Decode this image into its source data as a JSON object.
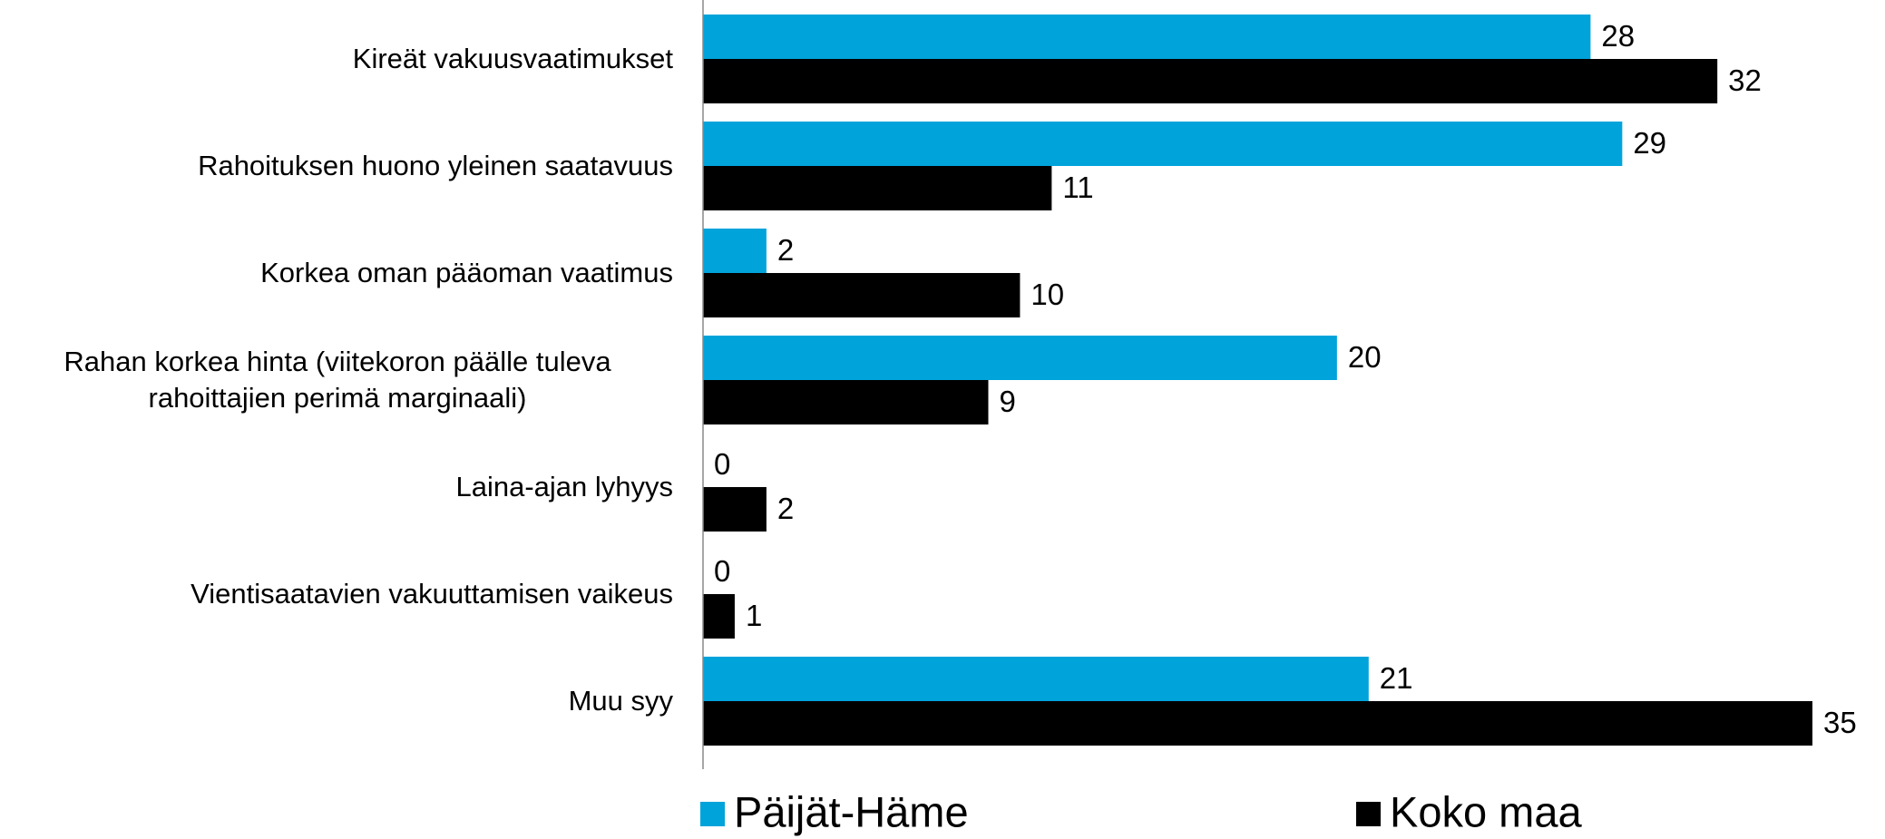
{
  "chart_data": {
    "type": "barh",
    "categories": [
      "Kireät vakuusvaatimukset",
      "Rahoituksen huono yleinen saatavuus",
      "Korkea oman pääoman vaatimus",
      "Rahan korkea hinta (viitekoron päälle tuleva rahoittajien perimä marginaali)",
      "Laina-ajan lyhyys",
      "Vientisaatavien vakuuttamisen vaikeus",
      "Muu syy"
    ],
    "series": [
      {
        "name": "Päijät-Häme",
        "color": "#00a3da",
        "values": [
          28,
          29,
          2,
          20,
          0,
          0,
          21
        ]
      },
      {
        "name": "Koko maa",
        "color": "#000000",
        "values": [
          32,
          11,
          10,
          9,
          2,
          1,
          35
        ]
      }
    ],
    "xlim": [
      0,
      35
    ],
    "legend": "bottom"
  }
}
